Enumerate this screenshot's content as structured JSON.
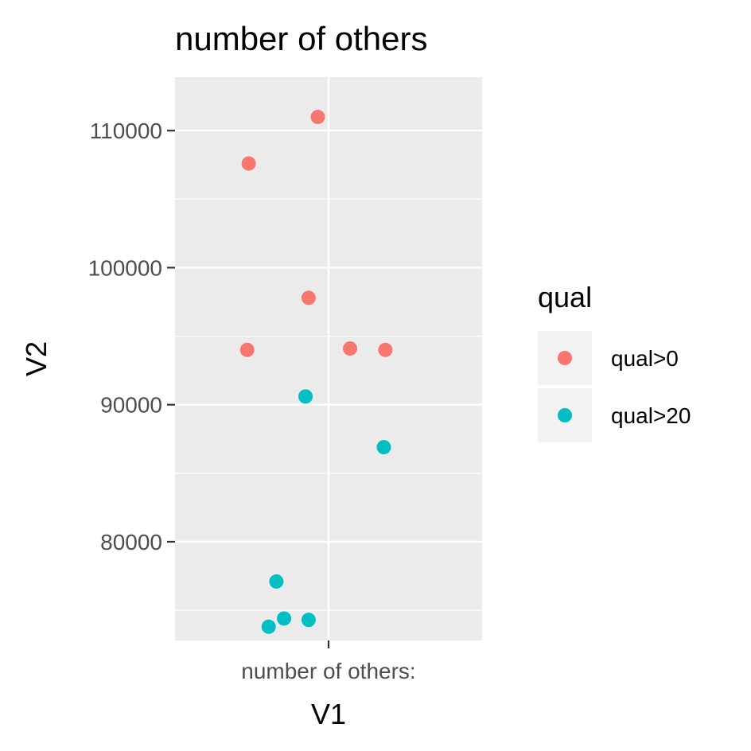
{
  "chart_data": {
    "type": "scatter",
    "title": "number of others",
    "xlabel": "V1",
    "ylabel": "V2",
    "x_category": "number of others:",
    "ylim": [
      72800,
      113900
    ],
    "yticks": [
      80000,
      90000,
      100000,
      110000
    ],
    "y_tick_labels": [
      "80000",
      "90000",
      "100000",
      "110000"
    ],
    "grid": true,
    "legend": {
      "title": "qual",
      "position": "right"
    },
    "series": [
      {
        "name": "qual>0",
        "color": "#F8766D",
        "points": [
          {
            "jitter": -0.07,
            "y": 111000
          },
          {
            "jitter": -0.52,
            "y": 107600
          },
          {
            "jitter": -0.13,
            "y": 97800
          },
          {
            "jitter": -0.53,
            "y": 94000
          },
          {
            "jitter": 0.14,
            "y": 94100
          },
          {
            "jitter": 0.37,
            "y": 94000
          }
        ]
      },
      {
        "name": "qual>20",
        "color": "#00BFC4",
        "points": [
          {
            "jitter": -0.15,
            "y": 90600
          },
          {
            "jitter": 0.36,
            "y": 86900
          },
          {
            "jitter": -0.34,
            "y": 77100
          },
          {
            "jitter": -0.29,
            "y": 74400
          },
          {
            "jitter": -0.13,
            "y": 74300
          },
          {
            "jitter": -0.39,
            "y": 73800
          }
        ]
      }
    ]
  }
}
